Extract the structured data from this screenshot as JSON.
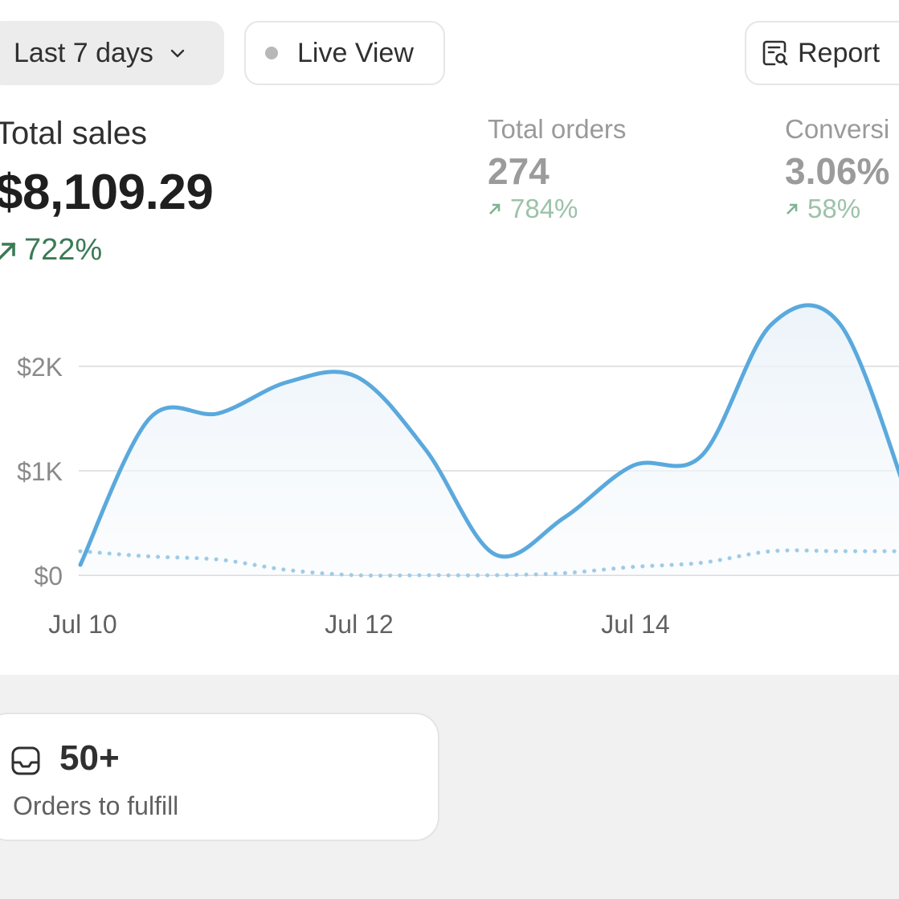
{
  "toolbar": {
    "date_range_label": "Last 7 days",
    "live_view_label": "Live View",
    "report_label": "Report"
  },
  "metrics": {
    "total_sales": {
      "title": "Total sales",
      "value": "$8,109.29",
      "change": "722%"
    },
    "total_orders": {
      "title": "Total orders",
      "value": "274",
      "change": "784%"
    },
    "conversion": {
      "title": "Conversi",
      "value": "3.06%",
      "change": "58%"
    }
  },
  "colors": {
    "primary_line": "#5aa9dd",
    "comparison_line": "#9fcbe6",
    "positive_change": "#3b7a55",
    "positive_change_muted": "#9cc2a9"
  },
  "chart_data": {
    "type": "line",
    "x": [
      "Jul 10",
      "Jul 10 12h",
      "Jul 11",
      "Jul 11 12h",
      "Jul 12",
      "Jul 12 12h",
      "Jul 13",
      "Jul 13 12h",
      "Jul 14",
      "Jul 14 12h",
      "Jul 15",
      "Jul 15 12h",
      "Jul 16"
    ],
    "x_ticks": [
      "Jul 10",
      "Jul 12",
      "Jul 14"
    ],
    "y_ticks": [
      "$0",
      "$1K",
      "$2K"
    ],
    "ylim": [
      0,
      2600
    ],
    "grid": true,
    "series": [
      {
        "values": [
          100,
          1500,
          1550,
          1850,
          1900,
          1200,
          200,
          550,
          1050,
          1150,
          2400,
          2400,
          700
        ]
      },
      {
        "values": [
          230,
          180,
          150,
          50,
          0,
          0,
          0,
          20,
          80,
          120,
          230,
          230,
          230
        ]
      }
    ]
  },
  "fulfill_card": {
    "count": "50+",
    "label": "Orders to fulfill"
  }
}
